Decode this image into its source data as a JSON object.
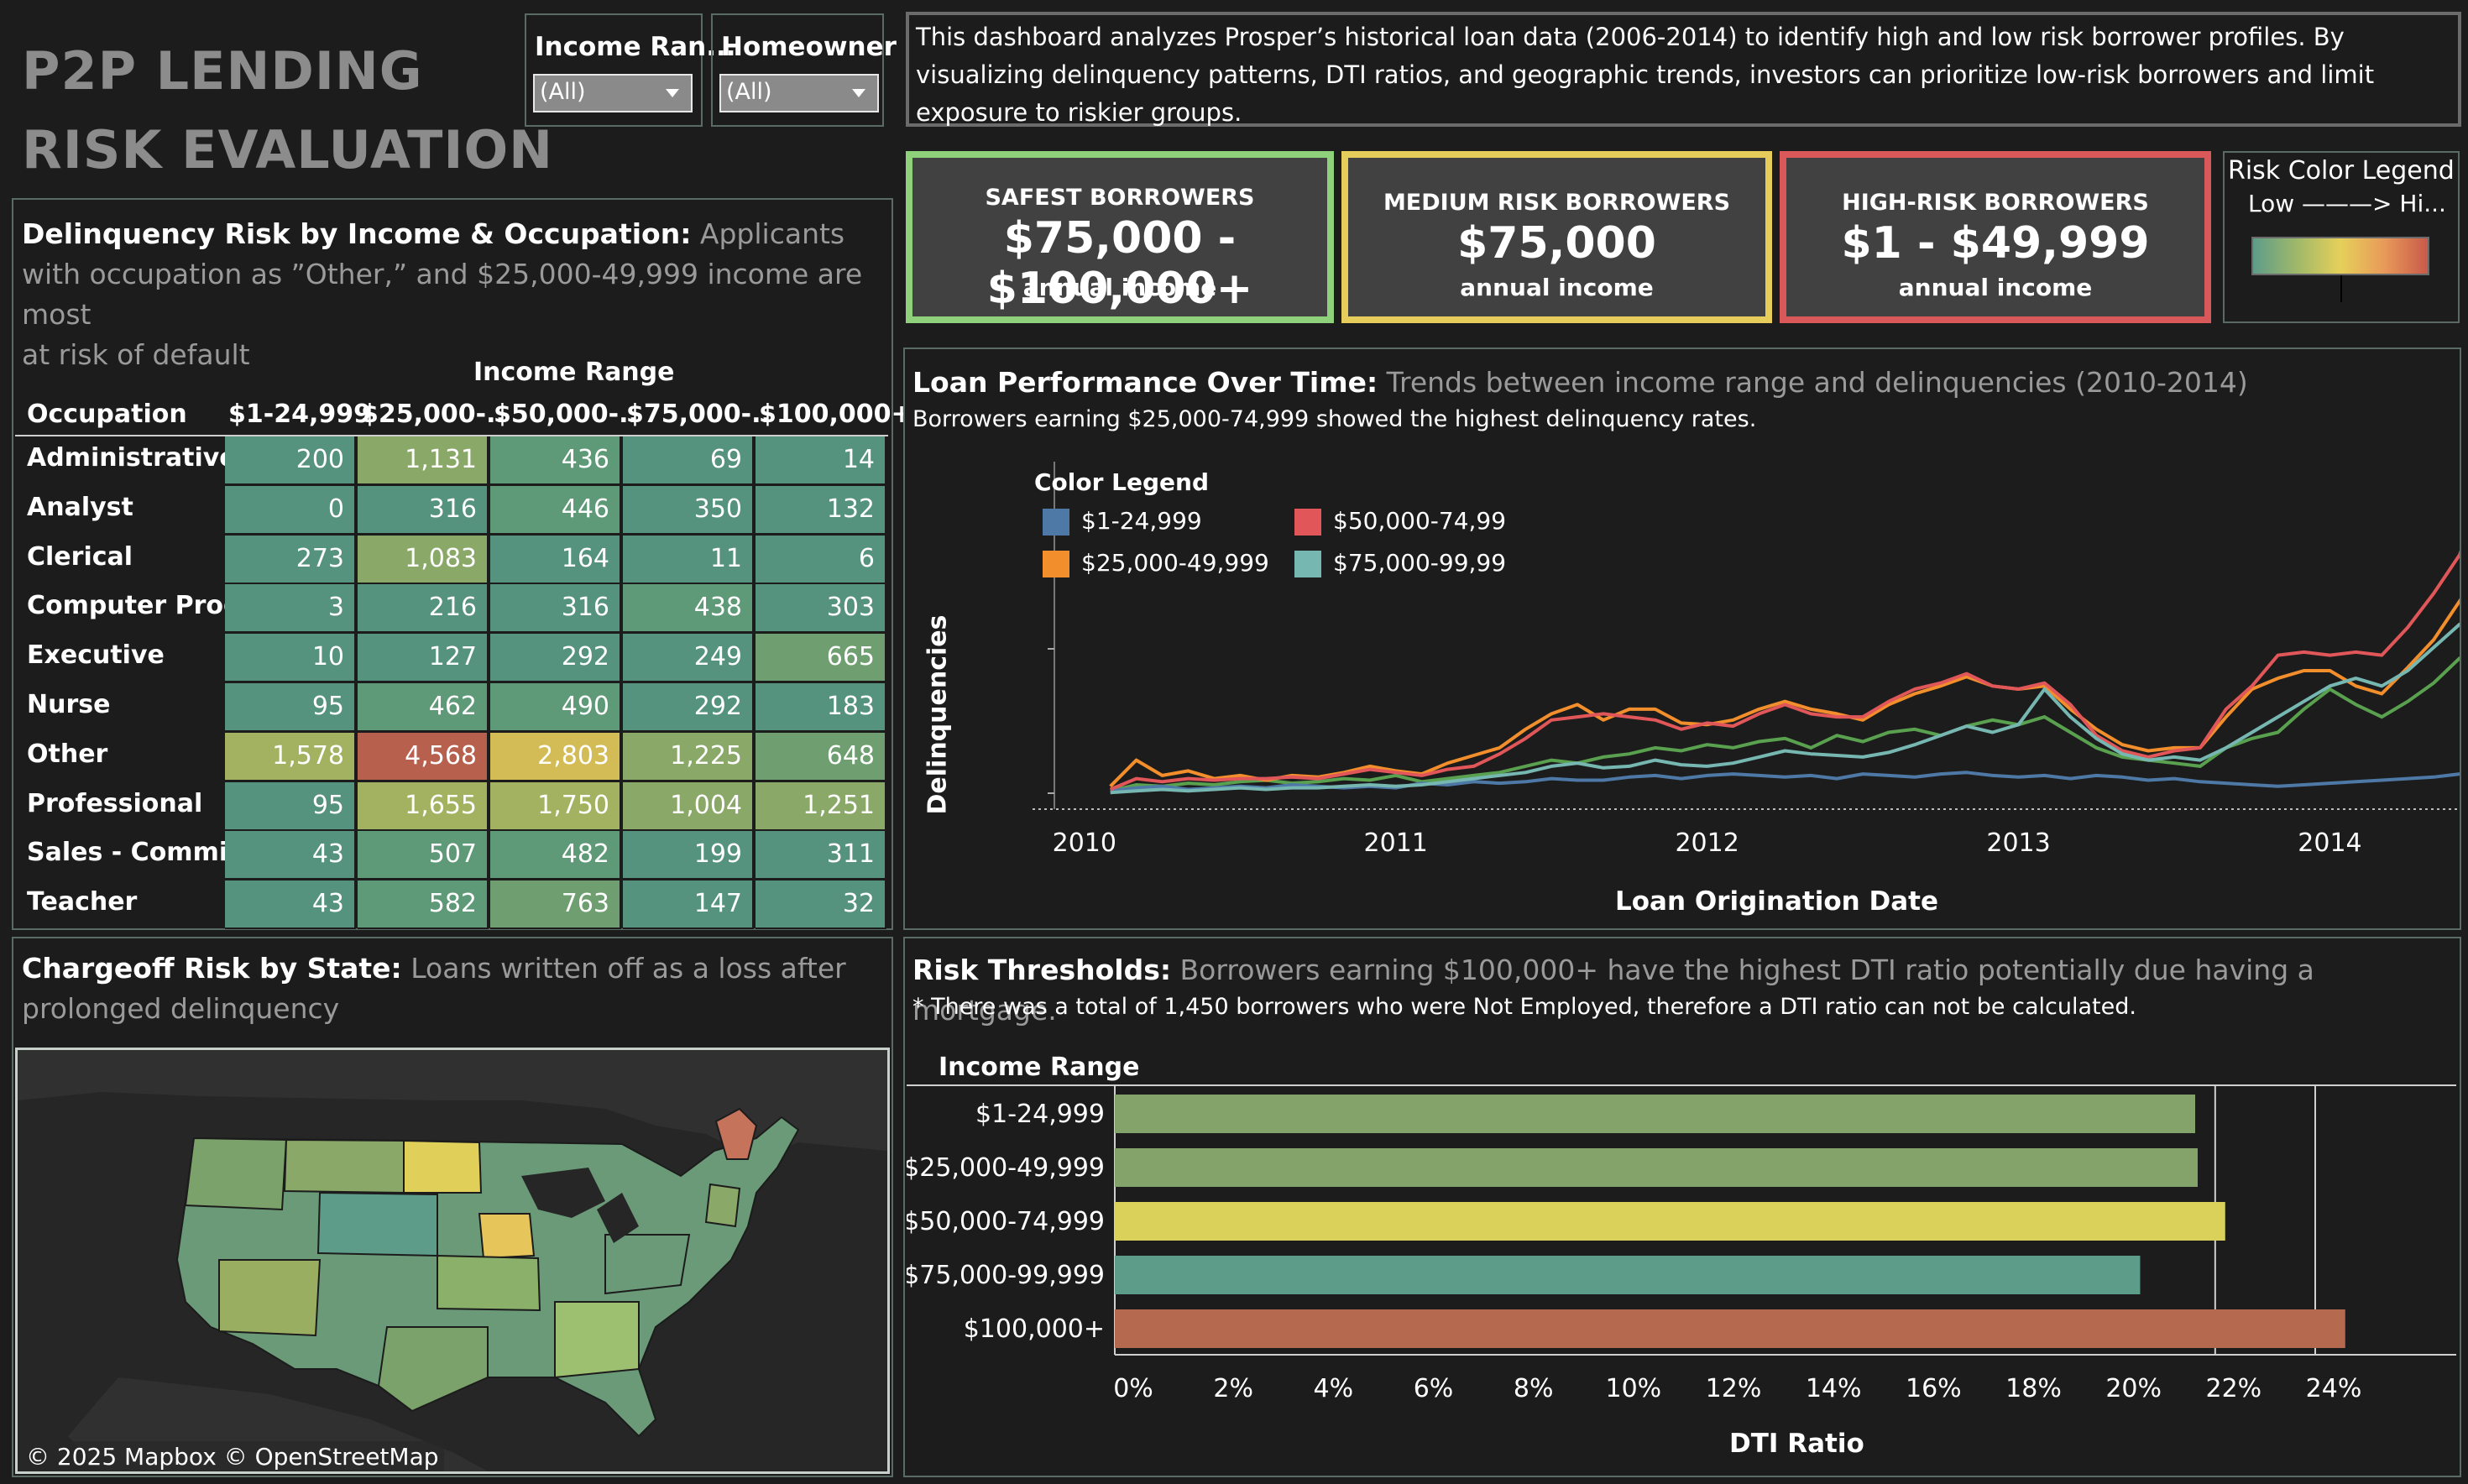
{
  "header": {
    "title_line1": "P2P LENDING",
    "title_line2": "RISK EVALUATION"
  },
  "filters": [
    {
      "label": "Income Ran...",
      "value": "(All)"
    },
    {
      "label": "Homeowner",
      "value": "(All)"
    }
  ],
  "description": "This dashboard analyzes Prosper’s historical loan data (2006-2014) to identify high and low risk borrower profiles. By visualizing delinquency patterns, DTI ratios, and geographic trends, investors can prioritize low-risk borrowers and limit exposure to riskier groups.",
  "kpis": [
    {
      "title": "SAFEST BORROWERS",
      "value": "$75,000 - $100,000+",
      "sub": "annual income",
      "color": "#8fd07a"
    },
    {
      "title": "MEDIUM RISK BORROWERS",
      "value": "$75,000",
      "sub": "annual income",
      "color": "#e6cc5a"
    },
    {
      "title": "HIGH-RISK BORROWERS",
      "value": "$1 - $49,999",
      "sub": "annual income",
      "color": "#d9585a"
    }
  ],
  "risk_legend": {
    "title": "Risk Color Legend",
    "scale": "Low ———> Hi..."
  },
  "heatmap": {
    "title_bold": "Delinquency Risk by Income & Occupation:",
    "title_grey_1": "Applicants",
    "title_grey_2": "with occupation as ”Other,” and $25,000-49,999 income are most",
    "title_grey_3": "at risk of default",
    "col_group": "Income Range",
    "row_header": "Occupation",
    "columns": [
      "$1-24,999",
      "$25,000-..",
      "$50,000-..",
      "$75,000-..",
      "$100,000+"
    ],
    "rows": [
      {
        "label": "Administrative ..",
        "values": [
          "200",
          "1,131",
          "436",
          "69",
          "14"
        ]
      },
      {
        "label": "Analyst",
        "values": [
          "0",
          "316",
          "446",
          "350",
          "132"
        ]
      },
      {
        "label": "Clerical",
        "values": [
          "273",
          "1,083",
          "164",
          "11",
          "6"
        ]
      },
      {
        "label": "Computer Prog..",
        "values": [
          "3",
          "216",
          "316",
          "438",
          "303"
        ]
      },
      {
        "label": "Executive",
        "values": [
          "10",
          "127",
          "292",
          "249",
          "665"
        ]
      },
      {
        "label": "Nurse",
        "values": [
          "95",
          "462",
          "490",
          "292",
          "183"
        ]
      },
      {
        "label": "Other",
        "values": [
          "1,578",
          "4,568",
          "2,803",
          "1,225",
          "648"
        ]
      },
      {
        "label": "Professional",
        "values": [
          "95",
          "1,655",
          "1,750",
          "1,004",
          "1,251"
        ]
      },
      {
        "label": "Sales - Commis..",
        "values": [
          "43",
          "507",
          "482",
          "199",
          "311"
        ]
      },
      {
        "label": "Teacher",
        "values": [
          "43",
          "582",
          "763",
          "147",
          "32"
        ]
      }
    ]
  },
  "map": {
    "title_bold": "Chargeoff Risk by State:",
    "title_grey_1": "Loans written off as a loss after",
    "title_grey_2": "prolonged delinquency",
    "attribution": "© 2025 Mapbox  © OpenStreetMap"
  },
  "line_chart": {
    "title_bold": "Loan Performance Over Time:",
    "title_grey": "Trends between income range and delinquencies (2010-2014)",
    "subtitle": "Borrowers earning $25,000-74,999 showed the highest delinquency rates.",
    "ylabel": "Delinquencies",
    "xlabel": "Loan Origination Date",
    "legend_title": "Color Legend",
    "xticks": [
      "2010",
      "2011",
      "2012",
      "2013",
      "2014"
    ]
  },
  "bar_chart": {
    "title_bold": "Risk Thresholds:",
    "title_grey": "Borrowers earning $100,000+ have the highest DTI ratio potentially due having a mortgage.",
    "note": "* There was a total of 1,450 borrowers who were Not Employed, therefore a DTI ratio can not be calculated.",
    "row_header": "Income Range",
    "xlabel": "DTI Ratio",
    "xticks": [
      "0%",
      "2%",
      "4%",
      "6%",
      "8%",
      "10%",
      "12%",
      "14%",
      "16%",
      "18%",
      "20%",
      "22%",
      "24%"
    ]
  },
  "chart_data": [
    {
      "type": "line",
      "title": "Loan Performance Over Time",
      "xlabel": "Loan Origination Date",
      "ylabel": "Delinquencies",
      "x_start": "2010-02",
      "x_step": "month",
      "xlim": [
        "2009-11",
        "2014-06"
      ],
      "series": [
        {
          "name": "$1-24,999",
          "color": "#4e79a7",
          "values": [
            2,
            4,
            5,
            3,
            4,
            5,
            4,
            6,
            5,
            4,
            5,
            4,
            7,
            6,
            8,
            7,
            8,
            10,
            9,
            9,
            11,
            12,
            10,
            12,
            13,
            12,
            11,
            12,
            10,
            13,
            12,
            11,
            13,
            14,
            12,
            11,
            12,
            10,
            12,
            11,
            9,
            10,
            8,
            7,
            6,
            5,
            6,
            7,
            8,
            9,
            10,
            11,
            13,
            15,
            14,
            13,
            15,
            17,
            10,
            1
          ]
        },
        {
          "name": "$25,000-49,999",
          "color": "#f28e2b",
          "values": [
            5,
            22,
            12,
            15,
            10,
            12,
            9,
            12,
            11,
            14,
            18,
            15,
            13,
            20,
            25,
            30,
            42,
            52,
            58,
            48,
            55,
            55,
            46,
            45,
            48,
            55,
            60,
            55,
            52,
            48,
            58,
            65,
            70,
            76,
            70,
            68,
            70,
            55,
            42,
            32,
            28,
            30,
            30,
            50,
            68,
            75,
            80,
            80,
            70,
            65,
            82,
            100,
            125,
            150,
            110,
            95,
            105,
            90,
            40,
            20
          ]
        },
        {
          "name": "$50,000-74,999",
          "color": "#e15759",
          "values": [
            3,
            10,
            8,
            10,
            9,
            10,
            10,
            11,
            10,
            13,
            16,
            14,
            12,
            16,
            18,
            26,
            36,
            48,
            50,
            52,
            50,
            48,
            42,
            46,
            44,
            52,
            58,
            52,
            50,
            50,
            60,
            68,
            72,
            78,
            70,
            68,
            72,
            58,
            38,
            28,
            24,
            28,
            30,
            55,
            70,
            90,
            92,
            90,
            92,
            90,
            108,
            130,
            155,
            200,
            160,
            150,
            165,
            120,
            60,
            25
          ]
        },
        {
          "name": "$75,000-99,999",
          "color": "#76b7b2",
          "values": [
            1,
            2,
            3,
            2,
            3,
            4,
            3,
            4,
            4,
            5,
            6,
            5,
            6,
            8,
            10,
            12,
            14,
            18,
            20,
            17,
            18,
            22,
            19,
            18,
            20,
            24,
            28,
            26,
            25,
            24,
            27,
            32,
            38,
            44,
            40,
            45,
            68,
            50,
            36,
            26,
            22,
            24,
            22,
            30,
            40,
            50,
            60,
            70,
            75,
            70,
            80,
            95,
            110,
            120,
            90,
            80,
            75,
            60,
            30,
            10
          ]
        }
      ]
    },
    {
      "type": "bar",
      "title": "Risk Thresholds",
      "xlabel": "DTI Ratio",
      "categories": [
        "$1-24,999",
        "$25,000-49,999",
        "$50,000-74,999",
        "$75,000-99,999",
        "$100,000+"
      ],
      "values": [
        21.6,
        21.65,
        22.2,
        20.5,
        24.6
      ],
      "colors": [
        "#84a36a",
        "#84a36a",
        "#d9d15a",
        "#5e9c8a",
        "#b56a50"
      ],
      "xlim": [
        0,
        26
      ]
    }
  ]
}
